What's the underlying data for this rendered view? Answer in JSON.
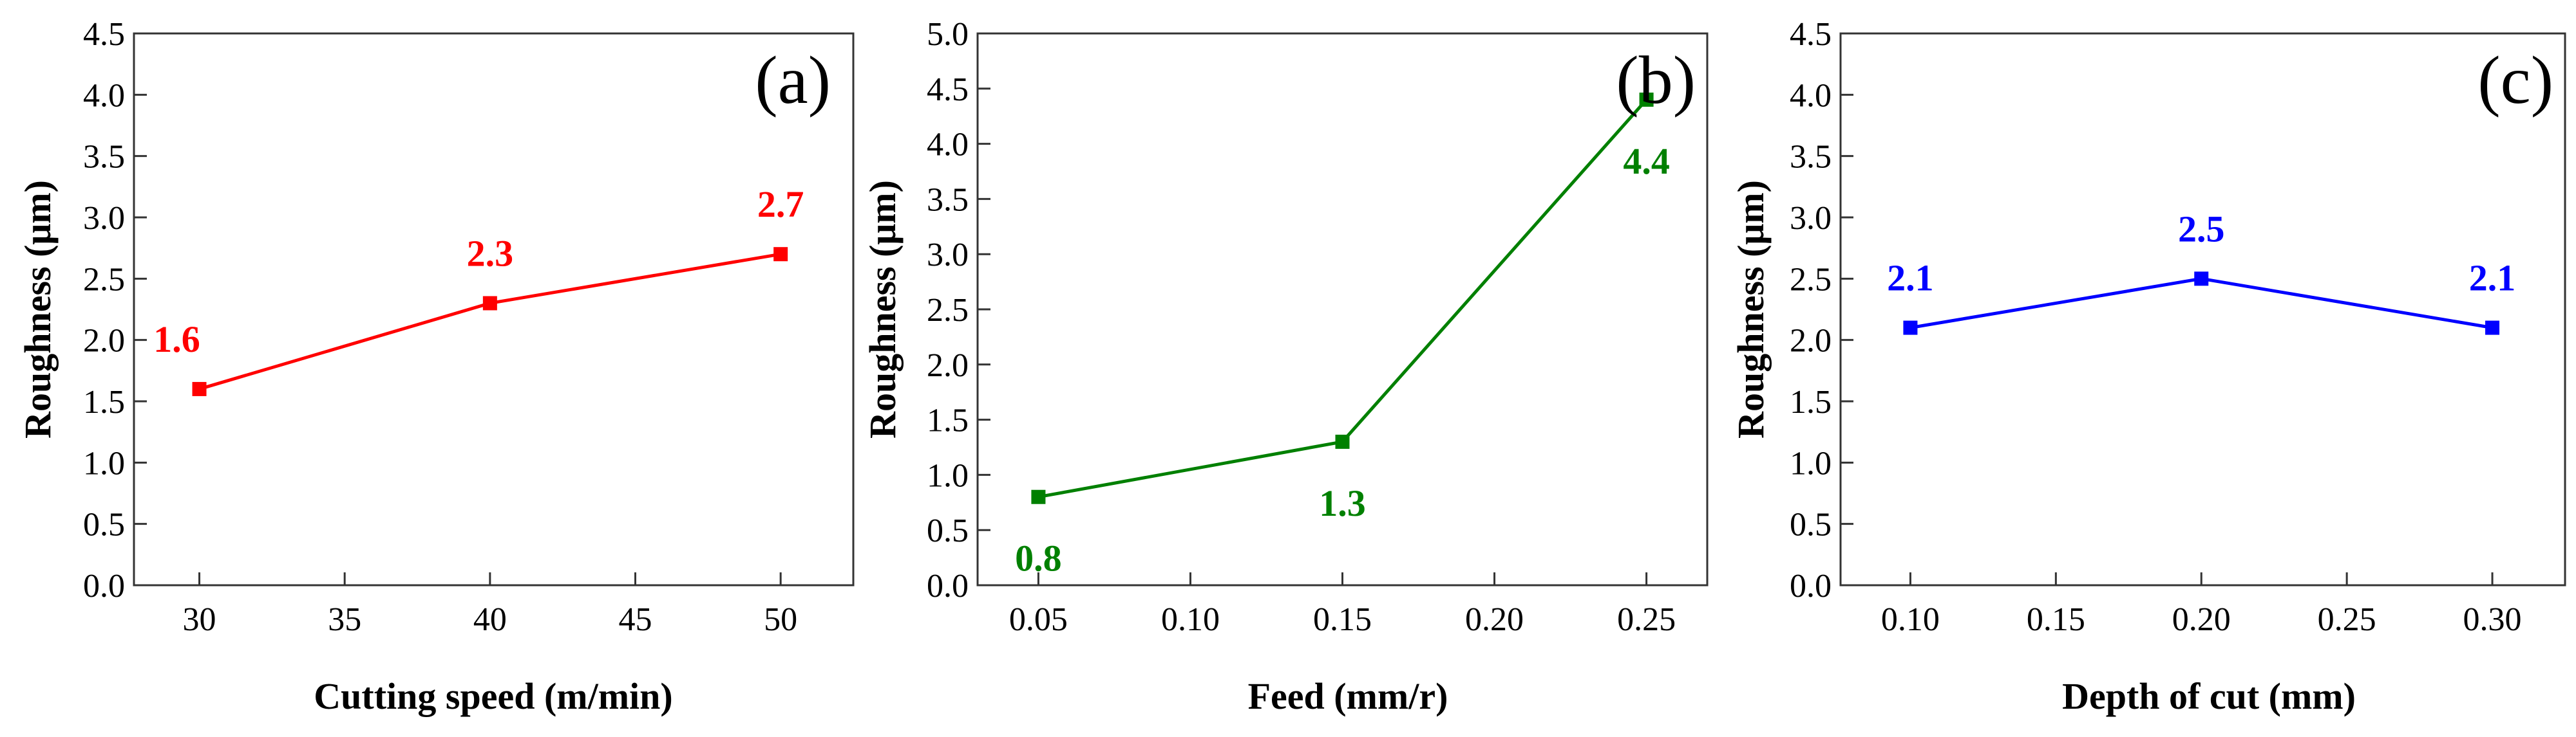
{
  "chart_data": [
    {
      "type": "line",
      "panel_tag": "(a)",
      "xlabel": "Cutting speed (m/min)",
      "ylabel": "Roughness (μm)",
      "x": [
        30,
        40,
        50
      ],
      "y": [
        1.6,
        2.3,
        2.7
      ],
      "point_labels": [
        "1.6",
        "2.3",
        "2.7"
      ],
      "label_positions": [
        "above-left",
        "above",
        "above"
      ],
      "xlim": [
        27.75,
        52.5
      ],
      "ylim": [
        0,
        4.5
      ],
      "xticks": [
        30,
        35,
        40,
        45,
        50
      ],
      "xtick_labels": [
        "30",
        "35",
        "40",
        "45",
        "50"
      ],
      "yticks": [
        0,
        0.5,
        1,
        1.5,
        2,
        2.5,
        3,
        3.5,
        4,
        4.5
      ],
      "ytick_labels": [
        "0.0",
        "0.5",
        "1.0",
        "1.5",
        "2.0",
        "2.5",
        "3.0",
        "3.5",
        "4.0",
        "4.5"
      ],
      "color": "#ff0000",
      "grid": false
    },
    {
      "type": "line",
      "panel_tag": "(b)",
      "xlabel": "Feed (mm/r)",
      "ylabel": "Roughness (μm)",
      "x": [
        0.05,
        0.15,
        0.25
      ],
      "y": [
        0.8,
        1.3,
        4.4
      ],
      "point_labels": [
        "0.8",
        "1.3",
        "4.4"
      ],
      "label_positions": [
        "below",
        "below",
        "below"
      ],
      "xlim": [
        0.03,
        0.27
      ],
      "ylim": [
        0,
        5
      ],
      "xticks": [
        0.05,
        0.1,
        0.15,
        0.2,
        0.25
      ],
      "xtick_labels": [
        "0.05",
        "0.10",
        "0.15",
        "0.20",
        "0.25"
      ],
      "yticks": [
        0,
        0.5,
        1,
        1.5,
        2,
        2.5,
        3,
        3.5,
        4,
        4.5,
        5
      ],
      "ytick_labels": [
        "0.0",
        "0.5",
        "1.0",
        "1.5",
        "2.0",
        "2.5",
        "3.0",
        "3.5",
        "4.0",
        "4.5",
        "5.0"
      ],
      "color": "#008000",
      "grid": false
    },
    {
      "type": "line",
      "panel_tag": "(c)",
      "xlabel": "Depth of cut (mm)",
      "ylabel": "Roughness (μm)",
      "x": [
        0.1,
        0.2,
        0.3
      ],
      "y": [
        2.1,
        2.5,
        2.1
      ],
      "point_labels": [
        "2.1",
        "2.5",
        "2.1"
      ],
      "label_positions": [
        "above",
        "above",
        "above"
      ],
      "xlim": [
        0.076,
        0.325
      ],
      "ylim": [
        0,
        4.5
      ],
      "xticks": [
        0.1,
        0.15,
        0.2,
        0.25,
        0.3
      ],
      "xtick_labels": [
        "0.10",
        "0.15",
        "0.20",
        "0.25",
        "0.30"
      ],
      "yticks": [
        0,
        0.5,
        1,
        1.5,
        2,
        2.5,
        3,
        3.5,
        4,
        4.5
      ],
      "ytick_labels": [
        "0.0",
        "0.5",
        "1.0",
        "1.5",
        "2.0",
        "2.5",
        "3.0",
        "3.5",
        "4.0",
        "4.5"
      ],
      "color": "#0000ff",
      "grid": false
    }
  ]
}
